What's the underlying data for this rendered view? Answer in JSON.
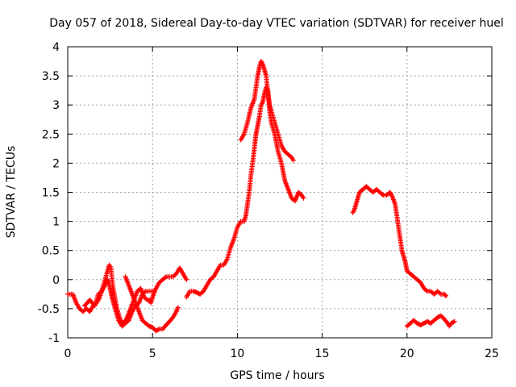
{
  "chart_data": {
    "type": "scatter",
    "title": "Day 057 of 2018, Sidereal Day-to-day VTEC variation (SDTVAR) for receiver huel",
    "xlabel": "GPS time / hours",
    "ylabel": "SDTVAR / TECUs",
    "xlim": [
      0,
      25
    ],
    "ylim": [
      -1,
      4
    ],
    "xticks": [
      0,
      5,
      10,
      15,
      20,
      25
    ],
    "yticks": [
      -1,
      -0.5,
      0,
      0.5,
      1,
      1.5,
      2,
      2.5,
      3,
      3.5,
      4
    ],
    "ytick_labels": [
      "-1",
      "-0.5",
      "0",
      "0.5",
      "1",
      "1.5",
      "2",
      "2.5",
      "3",
      "3.5",
      "4"
    ],
    "grid": true,
    "marker": "+",
    "color": "#ff0000",
    "series": [
      {
        "name": "SDTVAR",
        "segments": [
          [
            [
              0,
              -0.25
            ],
            [
              0.3,
              -0.25
            ],
            [
              0.5,
              -0.4
            ],
            [
              0.7,
              -0.5
            ],
            [
              0.9,
              -0.55
            ],
            [
              1.1,
              -0.5
            ],
            [
              1.3,
              -0.55
            ],
            [
              1.5,
              -0.45
            ],
            [
              1.7,
              -0.4
            ],
            [
              1.9,
              -0.3
            ],
            [
              2.1,
              -0.1
            ],
            [
              2.3,
              0.1
            ],
            [
              2.45,
              0.25
            ],
            [
              2.55,
              0.2
            ],
            [
              2.65,
              -0.1
            ],
            [
              2.8,
              -0.35
            ],
            [
              2.9,
              -0.5
            ],
            [
              3.0,
              -0.6
            ],
            [
              3.1,
              -0.7
            ],
            [
              3.3,
              -0.75
            ],
            [
              3.5,
              -0.65
            ],
            [
              3.7,
              -0.5
            ],
            [
              3.9,
              -0.35
            ],
            [
              4.1,
              -0.2
            ],
            [
              4.3,
              -0.15
            ],
            [
              4.5,
              -0.3
            ],
            [
              4.7,
              -0.35
            ],
            [
              4.8,
              -0.35
            ],
            [
              4.9,
              -0.4
            ],
            [
              5.0,
              -0.3
            ],
            [
              5.2,
              -0.15
            ],
            [
              5.4,
              -0.05
            ],
            [
              5.6,
              0.0
            ],
            [
              5.8,
              0.05
            ],
            [
              6.0,
              0.05
            ],
            [
              6.2,
              0.05
            ],
            [
              6.4,
              0.1
            ],
            [
              6.6,
              0.2
            ],
            [
              6.8,
              0.1
            ],
            [
              7.0,
              0.0
            ]
          ],
          [
            [
              1.0,
              -0.45
            ],
            [
              1.3,
              -0.35
            ],
            [
              1.6,
              -0.45
            ],
            [
              1.8,
              -0.25
            ],
            [
              2.0,
              -0.2
            ],
            [
              2.2,
              -0.1
            ],
            [
              2.35,
              0.0
            ],
            [
              2.5,
              -0.15
            ],
            [
              2.6,
              -0.3
            ],
            [
              2.75,
              -0.45
            ],
            [
              2.9,
              -0.6
            ],
            [
              3.0,
              -0.7
            ],
            [
              3.2,
              -0.8
            ],
            [
              3.4,
              -0.75
            ],
            [
              3.6,
              -0.7
            ],
            [
              3.8,
              -0.55
            ],
            [
              4.0,
              -0.45
            ],
            [
              4.2,
              -0.4
            ],
            [
              4.4,
              -0.25
            ],
            [
              4.6,
              -0.2
            ],
            [
              4.8,
              -0.2
            ],
            [
              5.0,
              -0.2
            ]
          ],
          [
            [
              3.4,
              0.05
            ],
            [
              3.6,
              -0.1
            ],
            [
              3.8,
              -0.25
            ],
            [
              4.0,
              -0.4
            ],
            [
              4.2,
              -0.55
            ],
            [
              4.4,
              -0.7
            ],
            [
              4.6,
              -0.75
            ],
            [
              4.8,
              -0.8
            ],
            [
              5.0,
              -0.82
            ],
            [
              5.2,
              -0.88
            ],
            [
              5.4,
              -0.85
            ],
            [
              5.6,
              -0.85
            ],
            [
              5.8,
              -0.78
            ],
            [
              6.0,
              -0.72
            ],
            [
              6.2,
              -0.65
            ],
            [
              6.4,
              -0.55
            ],
            [
              6.5,
              -0.48
            ]
          ],
          [
            [
              7.0,
              -0.3
            ],
            [
              7.2,
              -0.2
            ],
            [
              7.4,
              -0.2
            ],
            [
              7.6,
              -0.22
            ],
            [
              7.8,
              -0.25
            ],
            [
              8.0,
              -0.2
            ],
            [
              8.2,
              -0.1
            ],
            [
              8.4,
              0.0
            ],
            [
              8.6,
              0.05
            ],
            [
              8.8,
              0.15
            ],
            [
              9.0,
              0.25
            ],
            [
              9.2,
              0.25
            ],
            [
              9.4,
              0.35
            ],
            [
              9.6,
              0.55
            ],
            [
              9.8,
              0.7
            ],
            [
              10.0,
              0.9
            ],
            [
              10.2,
              1.0
            ],
            [
              10.4,
              1.0
            ],
            [
              10.5,
              1.1
            ],
            [
              10.6,
              1.3
            ],
            [
              10.7,
              1.5
            ],
            [
              10.8,
              1.8
            ],
            [
              10.9,
              2.0
            ],
            [
              11.0,
              2.25
            ],
            [
              11.1,
              2.5
            ],
            [
              11.2,
              2.65
            ],
            [
              11.3,
              2.8
            ],
            [
              11.4,
              3.0
            ],
            [
              11.5,
              3.05
            ],
            [
              11.6,
              3.2
            ],
            [
              11.7,
              3.3
            ],
            [
              11.8,
              3.25
            ],
            [
              11.9,
              2.9
            ],
            [
              12.0,
              2.7
            ],
            [
              12.2,
              2.5
            ],
            [
              12.4,
              2.2
            ],
            [
              12.6,
              2.0
            ],
            [
              12.8,
              1.7
            ],
            [
              13.0,
              1.55
            ],
            [
              13.2,
              1.4
            ],
            [
              13.4,
              1.35
            ],
            [
              13.6,
              1.5
            ],
            [
              13.8,
              1.45
            ],
            [
              13.9,
              1.4
            ]
          ],
          [
            [
              10.2,
              2.4
            ],
            [
              10.4,
              2.5
            ],
            [
              10.6,
              2.7
            ],
            [
              10.8,
              2.95
            ],
            [
              11.0,
              3.1
            ],
            [
              11.1,
              3.3
            ],
            [
              11.2,
              3.5
            ],
            [
              11.3,
              3.65
            ],
            [
              11.4,
              3.75
            ],
            [
              11.5,
              3.7
            ],
            [
              11.6,
              3.6
            ],
            [
              11.7,
              3.5
            ],
            [
              11.8,
              3.2
            ],
            [
              11.9,
              3.0
            ],
            [
              12.0,
              2.9
            ],
            [
              12.2,
              2.7
            ],
            [
              12.4,
              2.5
            ],
            [
              12.6,
              2.3
            ],
            [
              12.8,
              2.2
            ],
            [
              13.0,
              2.15
            ],
            [
              13.2,
              2.1
            ],
            [
              13.3,
              2.05
            ]
          ],
          [
            [
              16.8,
              1.15
            ],
            [
              16.9,
              1.2
            ],
            [
              17.0,
              1.3
            ],
            [
              17.1,
              1.4
            ],
            [
              17.2,
              1.5
            ],
            [
              17.4,
              1.55
            ],
            [
              17.6,
              1.6
            ],
            [
              17.8,
              1.55
            ],
            [
              18.0,
              1.5
            ],
            [
              18.2,
              1.55
            ],
            [
              18.4,
              1.5
            ],
            [
              18.6,
              1.45
            ],
            [
              18.8,
              1.45
            ],
            [
              19.0,
              1.5
            ],
            [
              19.1,
              1.45
            ],
            [
              19.3,
              1.3
            ],
            [
              19.4,
              1.1
            ],
            [
              19.5,
              0.9
            ],
            [
              19.6,
              0.7
            ],
            [
              19.7,
              0.5
            ],
            [
              19.8,
              0.4
            ],
            [
              19.9,
              0.3
            ],
            [
              20.0,
              0.15
            ],
            [
              20.2,
              0.1
            ],
            [
              20.4,
              0.05
            ],
            [
              20.6,
              0.0
            ],
            [
              20.8,
              -0.05
            ],
            [
              21.0,
              -0.15
            ],
            [
              21.2,
              -0.2
            ],
            [
              21.4,
              -0.2
            ],
            [
              21.6,
              -0.25
            ],
            [
              21.8,
              -0.2
            ],
            [
              22.0,
              -0.25
            ],
            [
              22.2,
              -0.25
            ],
            [
              22.3,
              -0.28
            ]
          ],
          [
            [
              20.0,
              -0.8
            ],
            [
              20.2,
              -0.75
            ],
            [
              20.4,
              -0.7
            ],
            [
              20.6,
              -0.75
            ],
            [
              20.8,
              -0.78
            ],
            [
              21.0,
              -0.75
            ],
            [
              21.2,
              -0.72
            ],
            [
              21.4,
              -0.75
            ],
            [
              21.6,
              -0.7
            ],
            [
              21.8,
              -0.65
            ],
            [
              22.0,
              -0.62
            ],
            [
              22.2,
              -0.68
            ],
            [
              22.4,
              -0.75
            ],
            [
              22.5,
              -0.8
            ],
            [
              22.6,
              -0.75
            ],
            [
              22.8,
              -0.72
            ]
          ]
        ]
      }
    ]
  }
}
